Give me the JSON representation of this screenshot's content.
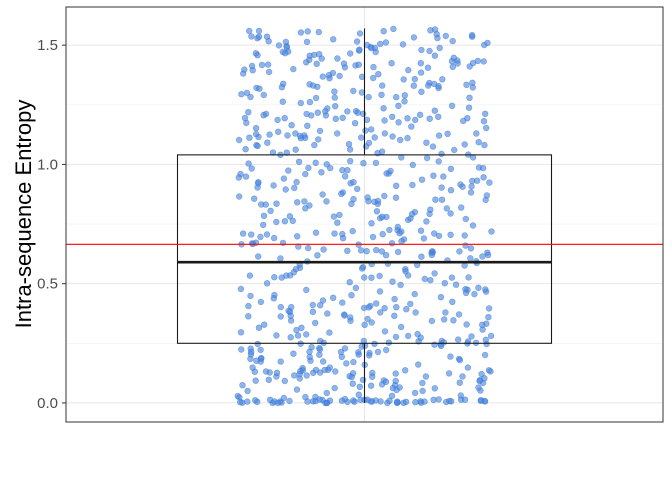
{
  "chart_data": {
    "type": "scatter",
    "subtype": "boxplot-with-jittered-points",
    "title": "",
    "xlabel": "",
    "ylabel": "Intra-sequence Entropy",
    "ylim": [
      -0.08,
      1.66
    ],
    "yticks": [
      0.0,
      0.5,
      1.0,
      1.5
    ],
    "ytick_labels": [
      "0.0",
      "0.5",
      "1.0",
      "1.5"
    ],
    "grid": true,
    "legend": "none",
    "point_count": 700,
    "point_value_range": [
      0.0,
      1.57
    ],
    "jitter_seed": 20240517,
    "boxplot": {
      "q1": 0.25,
      "median": 0.59,
      "q3": 1.04,
      "whisker_low": 0.0,
      "whisker_high": 1.57
    },
    "reference_line": {
      "y": 0.665,
      "color": "#ff0000"
    },
    "colors": {
      "points": "#4a86e0",
      "point_edge": "#2f6fc9",
      "box": "#1a1a1a",
      "grid": "#e6e6e6",
      "panel_border": "#333333"
    }
  }
}
